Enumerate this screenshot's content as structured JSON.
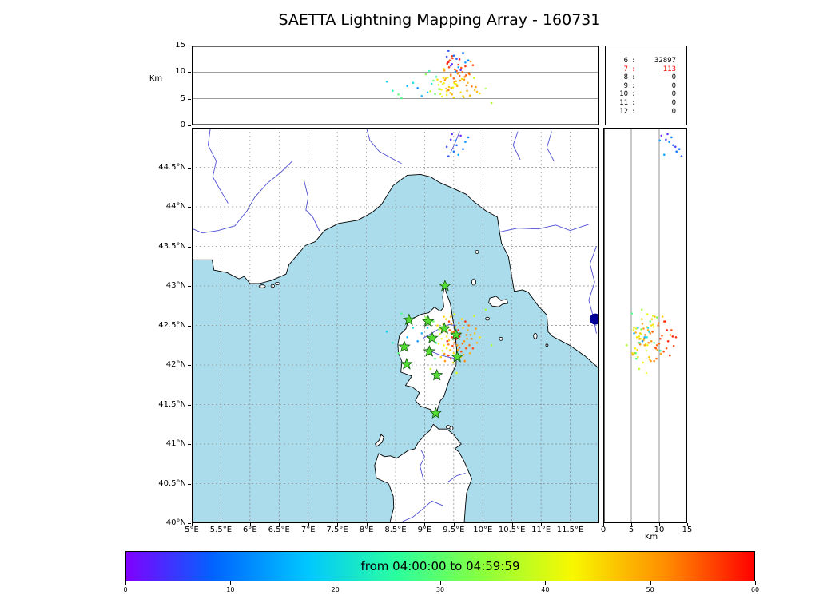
{
  "title": "SAETTA Lightning Mapping Array - 160731",
  "alt_axis": {
    "label": "Km",
    "tick_values": [
      0,
      5,
      10,
      15
    ],
    "tick_labels": [
      "0",
      "5",
      "10",
      "15"
    ],
    "range": [
      0,
      15
    ]
  },
  "map_axes": {
    "lon_range": [
      5,
      12
    ],
    "lat_range": [
      40,
      45
    ],
    "grid_step_deg": 0.5,
    "lon_tick_values": [
      5,
      5.5,
      6,
      6.5,
      7,
      7.5,
      8,
      8.5,
      9,
      9.5,
      10,
      10.5,
      11,
      11.5
    ],
    "lon_tick_labels": [
      "5°E",
      "5.5°E",
      "6°E",
      "6.5°E",
      "7°E",
      "7.5°E",
      "8°E",
      "8.5°E",
      "9°E",
      "9.5°E",
      "10°E",
      "10.5°E",
      "11°E",
      "11.5°E"
    ],
    "lat_tick_values": [
      40,
      40.5,
      41,
      41.5,
      42,
      42.5,
      43,
      43.5,
      44,
      44.5
    ],
    "lat_tick_labels": [
      "40°N",
      "40.5°N",
      "41°N",
      "41.5°N",
      "42°N",
      "42.5°N",
      "43°N",
      "43.5°N",
      "44°N",
      "44.5°N"
    ]
  },
  "stats_panel": {
    "highlight_color": "#ff0000",
    "rows": [
      {
        "label": "6",
        "value": "32897",
        "highlight": false
      },
      {
        "label": "7",
        "value": "113",
        "highlight": true
      },
      {
        "label": "8",
        "value": "0",
        "highlight": false
      },
      {
        "label": "9",
        "value": "0",
        "highlight": false
      },
      {
        "label": "10",
        "value": "0",
        "highlight": false
      },
      {
        "label": "11",
        "value": "0",
        "highlight": false
      },
      {
        "label": "12",
        "value": "0",
        "highlight": false
      }
    ]
  },
  "colorbar": {
    "label": "from 04:00:00 to 04:59:59",
    "tick_values": [
      0,
      10,
      20,
      30,
      40,
      50,
      60
    ],
    "tick_labels": [
      "0",
      "10",
      "20",
      "30",
      "40",
      "50",
      "60"
    ],
    "range": [
      0,
      60
    ]
  },
  "chart_data": {
    "type": "scatter",
    "title": "SAETTA Lightning Mapping Array - 160731",
    "panels": [
      "altitude_km_vs_longitude",
      "map_longitude_latitude",
      "altitude_km_vs_latitude"
    ],
    "lon_range": [
      5,
      12
    ],
    "lat_range": [
      40,
      45
    ],
    "alt_range_km": [
      0,
      15
    ],
    "time_window": {
      "start": "04:00:00",
      "end": "04:59:59",
      "color_scale_minutes": [
        0,
        60
      ]
    },
    "station_count_histogram": {
      "6": 32897,
      "7": 113,
      "8": 0,
      "9": 0,
      "10": 0,
      "11": 0,
      "12": 0
    },
    "style": {
      "sea": "#aadcec",
      "land": "#ffffff",
      "coast": "#000000",
      "river": "#3a3ace",
      "grid": "#8a8a8a",
      "panel_grid": "#666666",
      "station_fill": "#55dd33",
      "station_edge": "#115511"
    },
    "stations_lon_lat": [
      [
        9.35,
        43.0
      ],
      [
        8.73,
        42.57
      ],
      [
        9.06,
        42.55
      ],
      [
        9.34,
        42.46
      ],
      [
        9.54,
        42.38
      ],
      [
        9.13,
        42.34
      ],
      [
        8.65,
        42.23
      ],
      [
        9.08,
        42.17
      ],
      [
        9.56,
        42.1
      ],
      [
        8.69,
        42.01
      ],
      [
        9.21,
        41.87
      ],
      [
        9.19,
        41.39
      ]
    ],
    "extra_marker": {
      "lon": 11.93,
      "lat": 42.58,
      "radius_px": 7,
      "color": "#000099"
    },
    "sources": {
      "columns": [
        "lon",
        "lat",
        "alt_km",
        "minute"
      ],
      "points": [
        [
          9.42,
          42.31,
          7.2,
          47
        ],
        [
          9.51,
          42.28,
          8.1,
          52
        ],
        [
          9.38,
          42.36,
          6.4,
          44
        ],
        [
          9.6,
          42.22,
          9.3,
          55
        ],
        [
          9.47,
          42.41,
          5.8,
          49
        ],
        [
          9.55,
          42.33,
          10.2,
          57
        ],
        [
          9.33,
          42.25,
          7.9,
          43
        ],
        [
          9.68,
          42.3,
          8.6,
          51
        ],
        [
          9.44,
          42.19,
          6.1,
          46
        ],
        [
          9.58,
          42.44,
          11.4,
          58
        ],
        [
          9.4,
          42.48,
          9.0,
          41
        ],
        [
          9.72,
          42.38,
          7.5,
          53
        ],
        [
          9.5,
          42.15,
          5.2,
          45
        ],
        [
          9.36,
          42.42,
          8.8,
          48
        ],
        [
          9.63,
          42.17,
          10.8,
          56
        ],
        [
          9.29,
          42.33,
          6.7,
          42
        ],
        [
          9.77,
          42.25,
          9.6,
          54
        ],
        [
          9.46,
          42.52,
          7.0,
          50
        ],
        [
          9.54,
          42.07,
          8.3,
          47
        ],
        [
          9.41,
          42.12,
          11.9,
          59
        ],
        [
          9.66,
          42.47,
          5.5,
          44
        ],
        [
          9.31,
          42.18,
          7.7,
          40
        ],
        [
          9.59,
          42.53,
          9.9,
          52
        ],
        [
          9.48,
          42.24,
          12.6,
          57
        ],
        [
          9.37,
          42.58,
          6.9,
          46
        ],
        [
          9.74,
          42.44,
          8.0,
          49
        ],
        [
          9.52,
          42.37,
          10.5,
          55
        ],
        [
          9.27,
          42.46,
          5.9,
          39
        ],
        [
          9.81,
          42.33,
          7.3,
          53
        ],
        [
          9.45,
          42.61,
          9.2,
          48
        ],
        [
          9.62,
          42.1,
          6.2,
          45
        ],
        [
          9.35,
          42.05,
          8.5,
          51
        ],
        [
          9.7,
          42.55,
          11.1,
          58
        ],
        [
          9.24,
          42.27,
          7.6,
          41
        ],
        [
          9.57,
          42.19,
          9.7,
          50
        ],
        [
          9.43,
          42.44,
          12.2,
          56
        ],
        [
          9.86,
          42.4,
          6.6,
          47
        ],
        [
          9.32,
          42.51,
          8.9,
          44
        ],
        [
          9.65,
          42.27,
          10.0,
          54
        ],
        [
          9.49,
          42.03,
          7.1,
          43
        ],
        [
          9.78,
          42.15,
          5.6,
          49
        ],
        [
          9.39,
          42.3,
          11.6,
          59
        ],
        [
          9.61,
          42.4,
          8.4,
          52
        ],
        [
          9.26,
          42.39,
          6.8,
          40
        ],
        [
          9.71,
          42.21,
          9.4,
          55
        ],
        [
          9.53,
          42.48,
          7.8,
          46
        ],
        [
          9.34,
          42.14,
          10.3,
          51
        ],
        [
          9.9,
          42.28,
          6.3,
          48
        ],
        [
          9.47,
          42.35,
          13.0,
          58
        ],
        [
          9.64,
          42.58,
          8.7,
          45
        ],
        [
          9.3,
          42.44,
          5.4,
          42
        ],
        [
          9.76,
          42.5,
          9.8,
          53
        ],
        [
          9.56,
          42.25,
          7.4,
          50
        ],
        [
          9.42,
          42.55,
          10.9,
          57
        ],
        [
          9.95,
          42.35,
          6.0,
          44
        ],
        [
          9.28,
          42.1,
          8.2,
          47
        ],
        [
          9.69,
          42.05,
          9.1,
          52
        ],
        [
          9.51,
          42.64,
          7.9,
          41
        ],
        [
          9.83,
          42.21,
          11.3,
          56
        ],
        [
          9.38,
          42.21,
          5.7,
          43
        ],
        [
          9.6,
          42.36,
          12.4,
          59
        ],
        [
          9.22,
          42.5,
          8.6,
          45
        ],
        [
          9.73,
          42.33,
          6.5,
          49
        ],
        [
          9.45,
          42.08,
          9.5,
          54
        ],
        [
          9.88,
          42.46,
          7.2,
          51
        ],
        [
          9.33,
          42.61,
          10.6,
          46
        ],
        [
          9.67,
          42.13,
          5.3,
          48
        ],
        [
          9.5,
          42.42,
          8.8,
          55
        ],
        [
          9.79,
          42.38,
          12.0,
          50
        ],
        [
          9.41,
          42.26,
          6.6,
          53
        ],
        [
          9.12,
          42.35,
          7.8,
          22
        ],
        [
          9.05,
          42.47,
          6.2,
          18
        ],
        [
          9.2,
          42.28,
          9.1,
          27
        ],
        [
          8.95,
          42.4,
          5.5,
          15
        ],
        [
          9.15,
          42.55,
          8.4,
          31
        ],
        [
          8.88,
          42.3,
          7.0,
          12
        ],
        [
          9.08,
          42.18,
          10.2,
          25
        ],
        [
          9.25,
          42.45,
          6.8,
          34
        ],
        [
          8.8,
          42.47,
          8.0,
          20
        ],
        [
          9.18,
          42.08,
          5.9,
          29
        ],
        [
          8.7,
          42.35,
          7.4,
          16
        ],
        [
          9.02,
          42.6,
          9.6,
          33
        ],
        [
          8.45,
          42.28,
          6.5,
          24
        ],
        [
          8.35,
          42.42,
          8.2,
          19
        ],
        [
          8.55,
          42.15,
          5.8,
          30
        ],
        [
          9.45,
          44.85,
          11.2,
          4
        ],
        [
          9.55,
          44.78,
          12.5,
          7
        ],
        [
          9.62,
          44.9,
          10.4,
          2
        ],
        [
          9.5,
          44.7,
          13.1,
          9
        ],
        [
          9.7,
          44.82,
          11.8,
          12
        ],
        [
          9.38,
          44.76,
          12.9,
          5
        ],
        [
          9.58,
          44.66,
          10.9,
          14
        ],
        [
          9.66,
          44.73,
          13.6,
          8
        ],
        [
          9.47,
          44.92,
          11.5,
          3
        ],
        [
          9.75,
          44.88,
          12.2,
          10
        ],
        [
          9.41,
          44.64,
          14.0,
          6
        ],
        [
          9.53,
          44.84,
          10.1,
          13
        ],
        [
          10.15,
          42.25,
          4.2,
          37
        ],
        [
          10.05,
          42.7,
          6.9,
          36
        ],
        [
          8.6,
          42.65,
          5.1,
          28
        ],
        [
          9.1,
          41.95,
          6.4,
          38
        ],
        [
          9.55,
          41.9,
          7.7,
          42
        ],
        [
          9.85,
          42.62,
          8.9,
          40
        ]
      ]
    }
  }
}
